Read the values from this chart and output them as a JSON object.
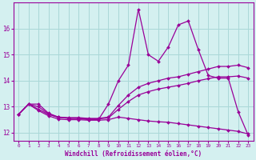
{
  "xlabel": "Windchill (Refroidissement éolien,°C)",
  "xlim": [
    -0.5,
    23.5
  ],
  "ylim": [
    11.7,
    17.0
  ],
  "xticks": [
    0,
    1,
    2,
    3,
    4,
    5,
    6,
    7,
    8,
    9,
    10,
    11,
    12,
    13,
    14,
    15,
    16,
    17,
    18,
    19,
    20,
    21,
    22,
    23
  ],
  "yticks": [
    12,
    13,
    14,
    15,
    16
  ],
  "bg_color": "#d4f0f0",
  "line_color": "#990099",
  "grid_color": "#aad8d8",
  "line1_x": [
    0,
    1,
    2,
    3,
    4,
    5,
    6,
    7,
    8,
    9,
    10,
    11,
    12,
    13,
    14,
    15,
    16,
    17,
    18,
    19,
    20,
    21,
    22,
    23
  ],
  "line1_y": [
    12.7,
    13.1,
    12.9,
    12.7,
    12.6,
    12.55,
    12.55,
    12.5,
    12.5,
    13.1,
    14.0,
    14.6,
    16.75,
    15.0,
    14.75,
    15.3,
    16.15,
    16.3,
    15.2,
    14.2,
    14.1,
    14.1,
    12.8,
    11.9
  ],
  "line2_x": [
    0,
    1,
    2,
    3,
    4,
    5,
    6,
    7,
    8,
    9,
    10,
    11,
    12,
    13,
    14,
    15,
    16,
    17,
    18,
    19,
    20,
    21,
    22,
    23
  ],
  "line2_y": [
    12.7,
    13.1,
    13.1,
    12.75,
    12.6,
    12.58,
    12.58,
    12.55,
    12.55,
    12.6,
    13.05,
    13.45,
    13.75,
    13.9,
    14.0,
    14.1,
    14.15,
    14.25,
    14.35,
    14.45,
    14.55,
    14.55,
    14.6,
    14.5
  ],
  "line3_x": [
    0,
    1,
    2,
    3,
    4,
    5,
    6,
    7,
    8,
    9,
    10,
    11,
    12,
    13,
    14,
    15,
    16,
    17,
    18,
    19,
    20,
    21,
    22,
    23
  ],
  "line3_y": [
    12.7,
    13.1,
    13.0,
    12.72,
    12.58,
    12.56,
    12.56,
    12.53,
    12.53,
    12.57,
    12.9,
    13.2,
    13.45,
    13.58,
    13.68,
    13.75,
    13.82,
    13.9,
    14.0,
    14.08,
    14.15,
    14.15,
    14.18,
    14.1
  ],
  "line4_x": [
    0,
    1,
    2,
    3,
    4,
    5,
    6,
    7,
    8,
    9,
    10,
    11,
    12,
    13,
    14,
    15,
    16,
    17,
    18,
    19,
    20,
    21,
    22,
    23
  ],
  "line4_y": [
    12.7,
    13.1,
    12.85,
    12.65,
    12.52,
    12.5,
    12.5,
    12.48,
    12.48,
    12.5,
    12.6,
    12.55,
    12.5,
    12.45,
    12.42,
    12.4,
    12.35,
    12.3,
    12.25,
    12.2,
    12.15,
    12.1,
    12.05,
    11.95
  ]
}
